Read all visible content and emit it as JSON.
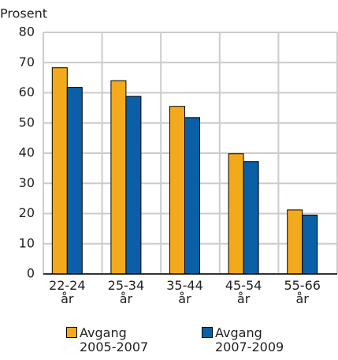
{
  "chart_data": {
    "type": "bar",
    "y_label": "Prosent",
    "categories": [
      "22-24 år",
      "25-34 år",
      "35-44 år",
      "45-54 år",
      "55-66 år"
    ],
    "series": [
      {
        "name": "Avgang 2005-2007",
        "color": "#f2a91c",
        "values": [
          68.3,
          64,
          55.5,
          39.8,
          21.2
        ]
      },
      {
        "name": "Avgang 2007-2009",
        "color": "#0a5fa6",
        "values": [
          61.8,
          58.8,
          51.8,
          37.2,
          19.5
        ]
      }
    ],
    "ylim": [
      0,
      80
    ],
    "yticks": [
      0,
      10,
      20,
      30,
      40,
      50,
      60,
      70,
      80
    ],
    "grid": true
  }
}
